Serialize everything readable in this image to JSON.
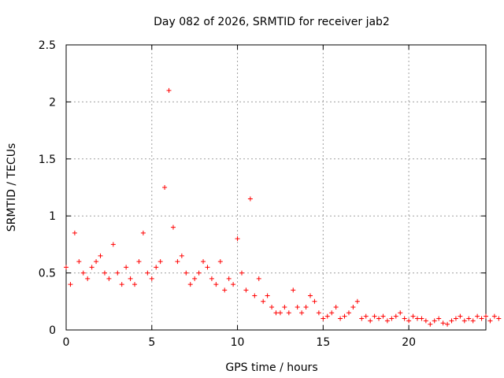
{
  "chart_data": {
    "type": "scatter",
    "title": "Day 082 of 2026, SRMTID for receiver jab2",
    "xlabel": "GPS time / hours",
    "ylabel": "SRMTID / TECUs",
    "xlim": [
      0,
      24.5
    ],
    "ylim": [
      0,
      2.5
    ],
    "x_ticks": [
      0,
      5,
      10,
      15,
      20
    ],
    "x_tick_labels": [
      "0",
      "5",
      "10",
      "15",
      "20"
    ],
    "y_ticks": [
      0,
      0.5,
      1,
      1.5,
      2,
      2.5
    ],
    "y_tick_labels": [
      "0",
      "0.5",
      "1",
      "1.5",
      "2",
      "2.5"
    ],
    "grid": true,
    "marker": "plus",
    "series": [
      {
        "name": "jab2",
        "color": "#ff0000",
        "x_start": 0,
        "x_step": 0.25,
        "values": [
          0.55,
          0.4,
          0.85,
          0.6,
          0.5,
          0.45,
          0.55,
          0.6,
          0.65,
          0.5,
          0.45,
          0.75,
          0.5,
          0.4,
          0.55,
          0.45,
          0.4,
          0.6,
          0.85,
          0.5,
          0.45,
          0.55,
          0.6,
          1.25,
          2.1,
          0.9,
          0.6,
          0.65,
          0.5,
          0.4,
          0.45,
          0.5,
          0.6,
          0.55,
          0.45,
          0.4,
          0.6,
          0.35,
          0.45,
          0.4,
          0.8,
          0.5,
          0.35,
          1.15,
          0.3,
          0.45,
          0.25,
          0.3,
          0.2,
          0.15,
          0.15,
          0.2,
          0.15,
          0.35,
          0.2,
          0.15,
          0.2,
          0.3,
          0.25,
          0.15,
          0.1,
          0.12,
          0.15,
          0.2,
          0.1,
          0.12,
          0.15,
          0.2,
          0.25,
          0.1,
          0.12,
          0.08,
          0.12,
          0.1,
          0.12,
          0.08,
          0.1,
          0.12,
          0.15,
          0.1,
          0.08,
          0.12,
          0.1,
          0.1,
          0.08,
          0.05,
          0.08,
          0.1,
          0.06,
          0.05,
          0.08,
          0.1,
          0.12,
          0.08,
          0.1,
          0.08,
          0.12,
          0.1,
          0.12,
          0.08,
          0.12,
          0.1
        ]
      }
    ]
  }
}
